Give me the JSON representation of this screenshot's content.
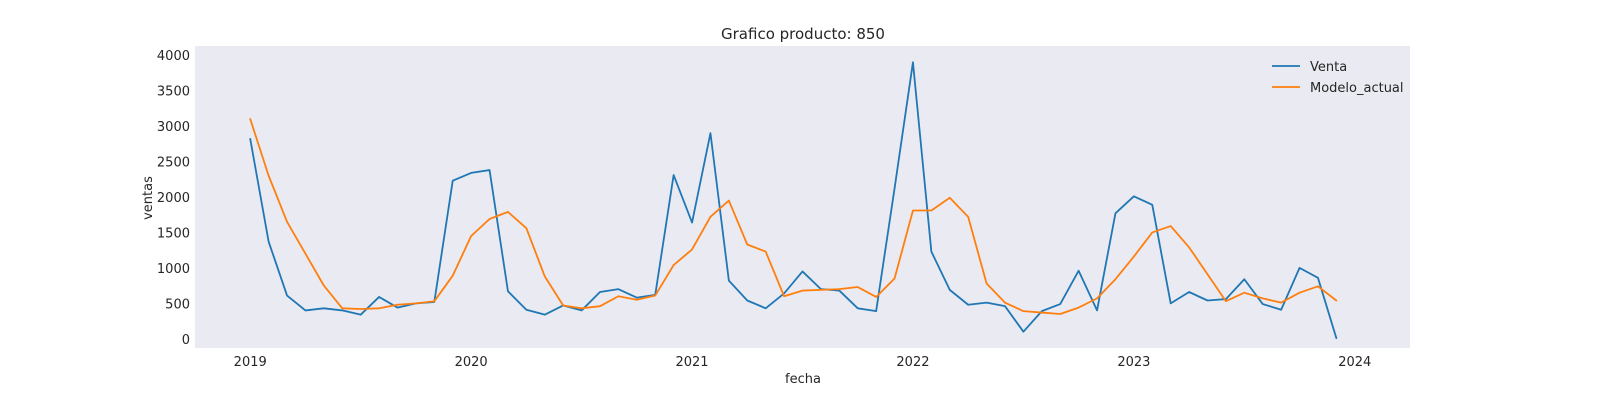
{
  "chart_data": {
    "type": "line",
    "title": "Grafico producto: 850",
    "xlabel": "fecha",
    "ylabel": "ventas",
    "x_start": "2019-01",
    "x_frequency": "monthly",
    "x_ticks": [
      "2019",
      "2020",
      "2021",
      "2022",
      "2023",
      "2024"
    ],
    "y_ticks": [
      0,
      500,
      1000,
      1500,
      2000,
      2500,
      3000,
      3500,
      4000
    ],
    "xlim": [
      "2018-10",
      "2024-04"
    ],
    "ylim": [
      -130,
      4130
    ],
    "grid": false,
    "legend": "top-right",
    "background_color": "#eaeaf2",
    "series": [
      {
        "name": "Venta",
        "color": "#1f77b4",
        "values": [
          2820,
          1370,
          610,
          400,
          430,
          400,
          340,
          590,
          440,
          500,
          520,
          2230,
          2340,
          2380,
          670,
          410,
          340,
          470,
          400,
          660,
          700,
          580,
          620,
          2310,
          1640,
          2900,
          820,
          540,
          430,
          640,
          950,
          700,
          680,
          430,
          390,
          2120,
          3900,
          1230,
          690,
          480,
          510,
          460,
          100,
          390,
          490,
          960,
          400,
          1770,
          2010,
          1890,
          500,
          660,
          540,
          560,
          840,
          490,
          410,
          1000,
          860,
          10
        ]
      },
      {
        "name": "Modelo_actual",
        "color": "#ff7f0e",
        "values": [
          3100,
          2300,
          1650,
          1200,
          750,
          430,
          420,
          430,
          480,
          500,
          530,
          890,
          1450,
          1690,
          1790,
          1560,
          880,
          470,
          430,
          460,
          600,
          550,
          610,
          1040,
          1260,
          1720,
          1950,
          1330,
          1230,
          600,
          680,
          690,
          700,
          730,
          590,
          850,
          1810,
          1810,
          1990,
          1720,
          780,
          510,
          390,
          370,
          350,
          440,
          570,
          840,
          1160,
          1500,
          1590,
          1290,
          910,
          530,
          650,
          570,
          510,
          650,
          740,
          540
        ]
      }
    ]
  }
}
